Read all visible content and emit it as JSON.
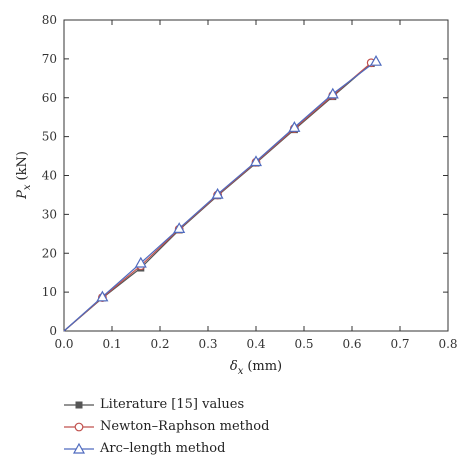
{
  "chart_data": {
    "type": "line",
    "xlabel": "δ",
    "xlabel_sub": "x",
    "xlabel_unit": "(mm)",
    "ylabel": "P",
    "ylabel_sub": "x",
    "ylabel_unit": "(kN)",
    "xlim": [
      0,
      0.8
    ],
    "ylim": [
      0,
      80
    ],
    "x_ticks": [
      "0.0",
      "0.1",
      "0.2",
      "0.3",
      "0.4",
      "0.5",
      "0.6",
      "0.7",
      "0.8"
    ],
    "y_ticks": [
      "0",
      "10",
      "20",
      "30",
      "40",
      "50",
      "60",
      "70",
      "80"
    ],
    "x_tick_values": [
      0,
      0.1,
      0.2,
      0.3,
      0.4,
      0.5,
      0.6,
      0.7,
      0.8
    ],
    "y_tick_values": [
      0,
      10,
      20,
      30,
      40,
      50,
      60,
      70,
      80
    ],
    "grid": false,
    "legend_position": "bottom-left",
    "series": [
      {
        "name": "Literature [15] values",
        "marker": "square",
        "color": "#555555",
        "x": [
          0,
          0.08,
          0.16,
          0.24,
          0.32,
          0.4,
          0.48,
          0.56,
          0.64
        ],
        "y": [
          0,
          8.5,
          16.2,
          26.0,
          34.8,
          43.2,
          51.8,
          60.3,
          68.8
        ]
      },
      {
        "name": "Newton–Raphson method",
        "marker": "circle",
        "color": "#c0504d",
        "x": [
          0,
          0.08,
          0.16,
          0.24,
          0.32,
          0.4,
          0.48,
          0.56,
          0.64
        ],
        "y": [
          0,
          8.6,
          16.8,
          26.2,
          35.0,
          43.4,
          52.1,
          60.6,
          69.0
        ]
      },
      {
        "name": "Arc–length method",
        "marker": "triangle",
        "color": "#4f6bbf",
        "x": [
          0,
          0.08,
          0.16,
          0.24,
          0.32,
          0.4,
          0.48,
          0.56,
          0.65
        ],
        "y": [
          0,
          8.8,
          17.5,
          26.4,
          35.2,
          43.6,
          52.4,
          61.0,
          69.4
        ]
      }
    ]
  }
}
